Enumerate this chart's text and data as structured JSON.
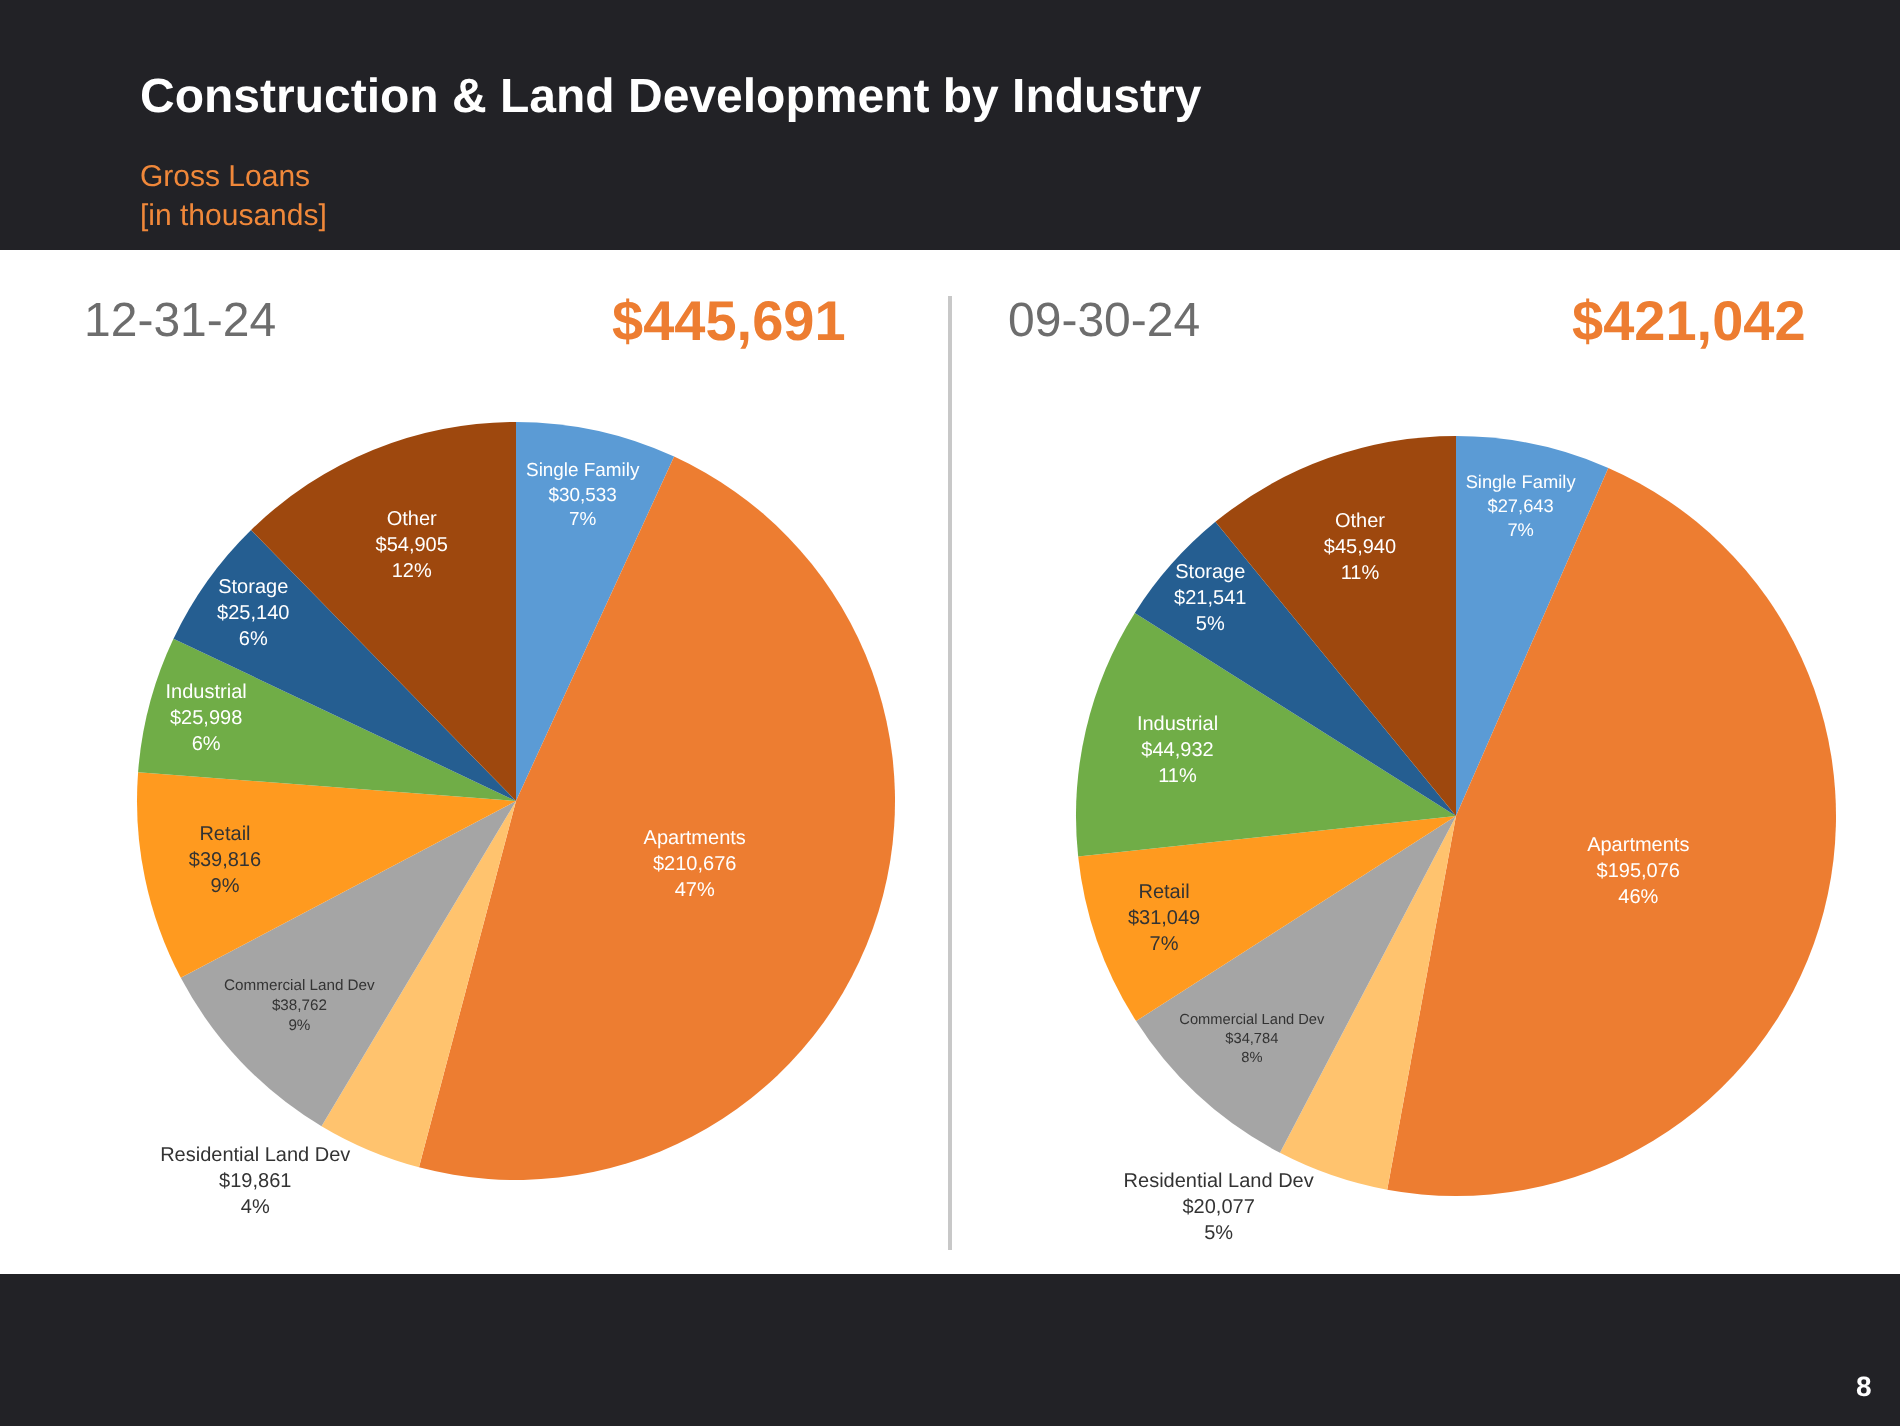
{
  "chart_data": [
    {
      "type": "pie",
      "title": "12-31-24",
      "subtitle": "$445,691",
      "annotations": [
        "Construction & Land Development by Industry",
        "Gross Loans\n[in thousands]"
      ],
      "categories": [
        "Single Family",
        "Apartments",
        "Residential Land Dev",
        "Commercial Land Dev",
        "Retail",
        "Industrial",
        "Storage",
        "Other"
      ],
      "values": [
        30533,
        210676,
        19861,
        38762,
        39816,
        25998,
        25140,
        54905
      ],
      "colors": [
        "#5b9bd5",
        "#ed7d31",
        "#ffc36e",
        "#a5a5a5",
        "#ff9a1f",
        "#70ad47",
        "#255e91",
        "#9e480e"
      ],
      "value_labels": [
        "$30,533\n7%",
        "$210,676\n47%",
        "$19,861\n4%",
        "$38,762\n9%",
        "$39,816\n9%",
        "$25,998\n6%",
        "$25,140\n6%",
        "$54,905\n12%"
      ]
    },
    {
      "type": "pie",
      "title": "09-30-24",
      "subtitle": "$421,042",
      "annotations": [
        "8"
      ],
      "categories": [
        "Single Family",
        "Apartments",
        "Residential Land Dev",
        "Commercial Land Dev",
        "Retail",
        "Industrial",
        "Storage",
        "Other"
      ],
      "values": [
        27643,
        195076,
        20077,
        34784,
        31049,
        44932,
        21541,
        45940
      ],
      "colors": [
        "#5b9bd5",
        "#ed7d31",
        "#ffc36e",
        "#a5a5a5",
        "#ff9a1f",
        "#70ad47",
        "#255e91",
        "#9e480e"
      ],
      "value_labels": [
        "$27,643\n7%",
        "$195,076\n46%",
        "$20,077\n5%",
        "$34,784\n8%",
        "$31,049\n7%",
        "$44,932\n11%",
        "$21,541\n5%",
        "$45,940\n11%"
      ]
    }
  ]
}
